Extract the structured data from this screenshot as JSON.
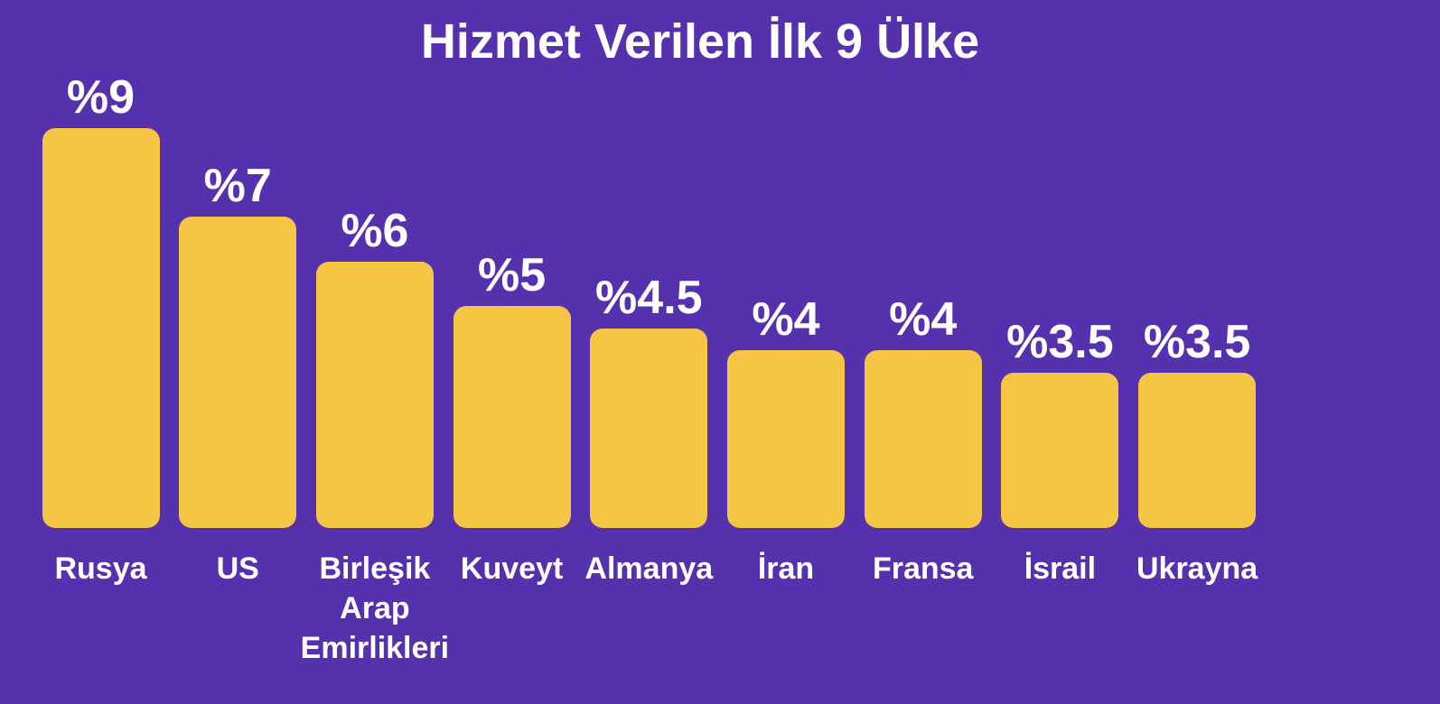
{
  "chart_data": {
    "type": "bar",
    "title": "Hizmet Verilen İlk 9 Ülke",
    "categories": [
      "Rusya",
      "US",
      "Birleşik Arap Emirlikleri",
      "Kuveyt",
      "Almanya",
      "İran",
      "Fransa",
      "İsrail",
      "Ukrayna"
    ],
    "values": [
      9,
      7,
      6,
      5,
      4.5,
      4,
      4,
      3.5,
      3.5
    ],
    "value_labels": [
      "%9",
      "%7",
      "%6",
      "%5",
      "%4.5",
      "%4",
      "%4",
      "%3.5",
      "%3.5"
    ],
    "color": "#f6c544"
  }
}
